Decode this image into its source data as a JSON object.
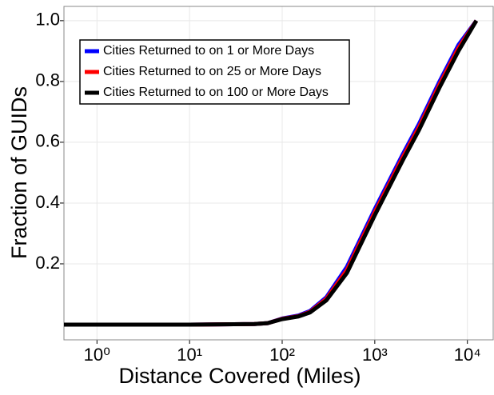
{
  "chart_data": {
    "type": "line",
    "xlabel": "Distance Covered (Miles)",
    "ylabel": "Fraction of GUIDs",
    "x": [
      0.44,
      10,
      50,
      70,
      100,
      150,
      200,
      300,
      500,
      1000,
      2000,
      3000,
      5000,
      8000,
      10000,
      12500
    ],
    "series": [
      {
        "name": "Cities Returned to on 1 or More Days",
        "color": "#0000ff",
        "values": [
          0,
          0,
          0.002,
          0.005,
          0.02,
          0.03,
          0.045,
          0.09,
          0.19,
          0.38,
          0.56,
          0.66,
          0.8,
          0.92,
          0.96,
          1.0
        ]
      },
      {
        "name": "Cities Returned to on 25 or More Days",
        "color": "#ff0000",
        "values": [
          0,
          0,
          0.002,
          0.005,
          0.019,
          0.028,
          0.042,
          0.085,
          0.18,
          0.37,
          0.55,
          0.65,
          0.79,
          0.91,
          0.955,
          1.0
        ]
      },
      {
        "name": "Cities Returned to on 100 or More Days",
        "color": "#000000",
        "values": [
          0,
          0,
          0.002,
          0.005,
          0.018,
          0.027,
          0.04,
          0.08,
          0.17,
          0.36,
          0.54,
          0.64,
          0.78,
          0.9,
          0.95,
          1.0
        ]
      }
    ],
    "xscale": "log",
    "xlim": [
      0.44,
      19000
    ],
    "xticks": [
      {
        "value": 1,
        "label": "10⁰"
      },
      {
        "value": 10,
        "label": "10¹"
      },
      {
        "value": 100,
        "label": "10²"
      },
      {
        "value": 1000,
        "label": "10³"
      },
      {
        "value": 10000,
        "label": "10⁴"
      }
    ],
    "ylim": [
      -0.05,
      1.047
    ],
    "yticks": [
      0.2,
      0.4,
      0.6,
      0.8,
      {
        "value": 1,
        "label": "1.0"
      }
    ],
    "grid": true,
    "legend": "upper left"
  }
}
